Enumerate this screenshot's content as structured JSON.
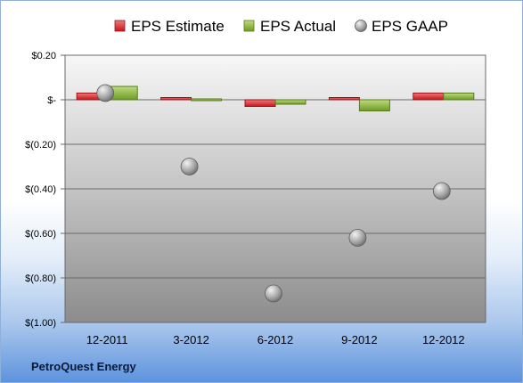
{
  "company": "PetroQuest Energy",
  "colors": {
    "estimate": "#d9343a",
    "actual": "#8dbb3e",
    "gaap": "#a8a8a8"
  },
  "chart_data": {
    "type": "bar",
    "title": "",
    "xlabel": "",
    "ylabel": "",
    "categories": [
      "12-2011",
      "3-2012",
      "6-2012",
      "9-2012",
      "12-2012"
    ],
    "ylim": [
      -1.0,
      0.2
    ],
    "yticks": [
      0.2,
      0.0,
      -0.2,
      -0.4,
      -0.6,
      -0.8,
      -1.0
    ],
    "ytick_labels": [
      "$0.20",
      "$-",
      "$(0.20)",
      "$(0.40)",
      "$(0.60)",
      "$(0.80)",
      "$(1.00)"
    ],
    "grid": true,
    "legend_position": "top",
    "series": [
      {
        "name": "EPS Estimate",
        "kind": "bar",
        "values": [
          0.03,
          0.01,
          -0.03,
          0.01,
          0.03
        ]
      },
      {
        "name": "EPS Actual",
        "kind": "bar",
        "values": [
          0.06,
          -0.005,
          -0.02,
          -0.05,
          0.03
        ]
      },
      {
        "name": "EPS GAAP",
        "kind": "scatter",
        "values": [
          0.03,
          -0.3,
          -0.87,
          -0.62,
          -0.41
        ]
      }
    ]
  }
}
